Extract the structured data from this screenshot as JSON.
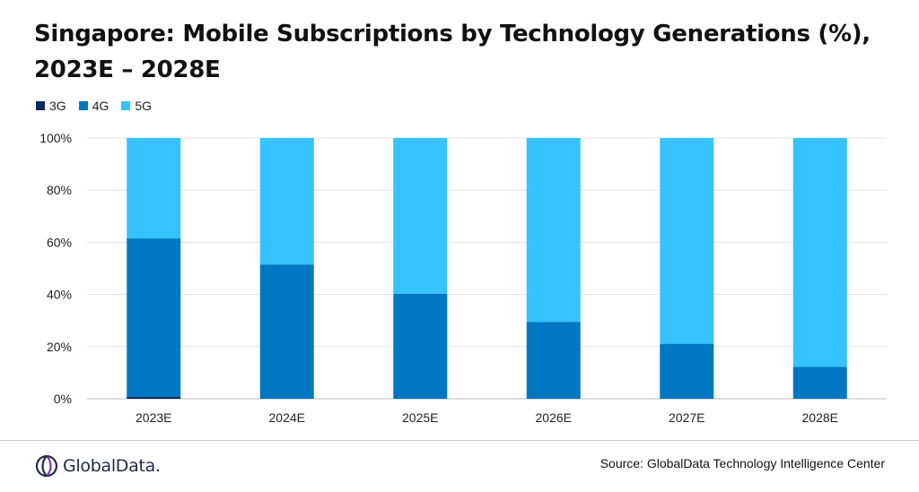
{
  "chart_data": {
    "type": "bar",
    "stacked": true,
    "title_lines": [
      "Singapore: Mobile Subscriptions by Technology Generations (%),",
      "2023E – 2028E"
    ],
    "categories": [
      "2023E",
      "2024E",
      "2025E",
      "2026E",
      "2027E",
      "2028E"
    ],
    "series": [
      {
        "name": "3G",
        "color": "#0b2a5b",
        "values": [
          0.7,
          0,
          0,
          0,
          0,
          0
        ]
      },
      {
        "name": "4G",
        "color": "#0077c2",
        "values": [
          60.8,
          51.5,
          40.3,
          29.5,
          21.1,
          12.2
        ]
      },
      {
        "name": "5G",
        "color": "#35c2ff",
        "values": [
          38.5,
          48.5,
          59.7,
          70.5,
          78.9,
          87.8
        ]
      }
    ],
    "ylim": [
      0,
      100
    ],
    "yticks": [
      "0%",
      "20%",
      "40%",
      "60%",
      "80%",
      "100%"
    ],
    "grid": true,
    "legend_position": "top-left"
  },
  "footer": {
    "brand": "GlobalData.",
    "source": "Source: GlobalData Technology Intelligence Center"
  }
}
